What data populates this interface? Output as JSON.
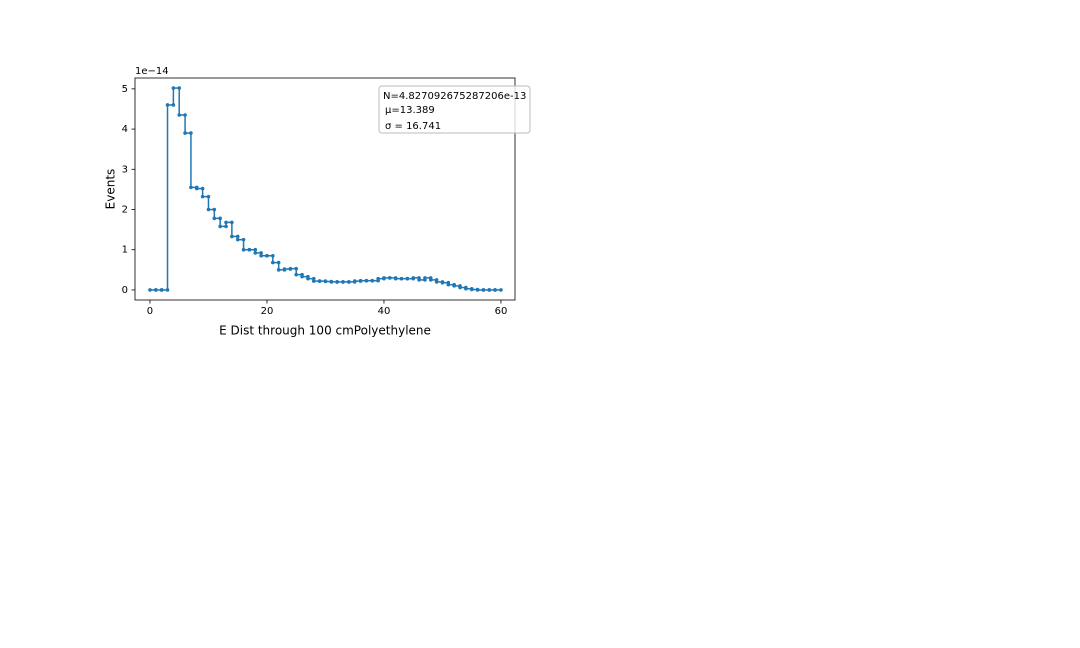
{
  "chart_data": {
    "type": "histogram",
    "xlabel": "E Dist through 100 cmPolyethylene",
    "ylabel": "Events",
    "y_offset_label": "1e−14",
    "annotations": [
      "N=4.827092675287206e-13",
      "μ=13.389",
      "σ = 16.741"
    ],
    "bins": [
      0,
      1,
      2,
      3,
      4,
      5,
      6,
      7,
      8,
      9,
      10,
      11,
      12,
      13,
      14,
      15,
      16,
      17,
      18,
      19,
      20,
      21,
      22,
      23,
      24,
      25,
      26,
      27,
      28,
      29,
      30,
      31,
      32,
      33,
      34,
      35,
      36,
      37,
      38,
      39,
      40,
      41,
      42,
      43,
      44,
      45,
      46,
      47,
      48,
      49,
      50,
      51,
      52,
      53,
      54,
      55,
      56,
      57,
      58,
      59,
      60
    ],
    "counts": [
      0,
      0,
      0,
      4.6,
      5.02,
      4.35,
      3.9,
      2.55,
      2.52,
      2.32,
      2.0,
      1.78,
      1.58,
      1.68,
      1.33,
      1.25,
      1.0,
      1.0,
      0.92,
      0.85,
      0.85,
      0.68,
      0.5,
      0.52,
      0.53,
      0.38,
      0.33,
      0.28,
      0.22,
      0.22,
      0.21,
      0.2,
      0.2,
      0.2,
      0.2,
      0.22,
      0.23,
      0.23,
      0.23,
      0.28,
      0.3,
      0.3,
      0.28,
      0.28,
      0.28,
      0.3,
      0.25,
      0.3,
      0.25,
      0.2,
      0.18,
      0.13,
      0.1,
      0.06,
      0.03,
      0.01,
      0,
      0,
      0,
      0
    ],
    "color": "#1f77b4",
    "xlim": [
      -2.56,
      62.4
    ],
    "ylim": [
      -0.25,
      5.27
    ],
    "xticks": [
      0,
      20,
      40,
      60
    ],
    "yticks": [
      0,
      1,
      2,
      3,
      4,
      5
    ]
  }
}
